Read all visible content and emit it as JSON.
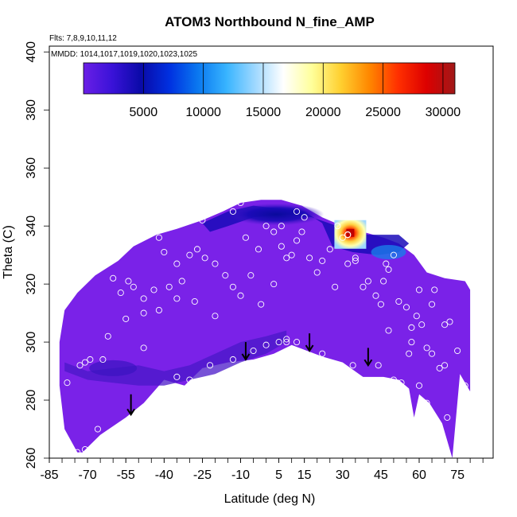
{
  "chart_data": {
    "type": "heatmap",
    "title": "ATOM3 Northbound N_fine_AMP",
    "subtitle_flights": "Flts: 7,8,9,10,11,12",
    "subtitle_dates": "MMDD: 1014,1017,1019,1020,1023,1025",
    "xlabel": "Latitude (deg N)",
    "ylabel": "Theta (C)",
    "xlim": [
      -85,
      89
    ],
    "ylim": [
      260,
      402
    ],
    "x_ticks": [
      -85,
      -70,
      -55,
      -40,
      -25,
      -10,
      5,
      15,
      30,
      45,
      60,
      75
    ],
    "y_ticks": [
      260,
      280,
      300,
      320,
      340,
      360,
      380,
      400
    ],
    "colorbar": {
      "range": [
        0,
        31000
      ],
      "ticks": [
        5000,
        10000,
        15000,
        20000,
        25000,
        30000
      ],
      "colors": [
        "#6a1fe6",
        "#3a12d8",
        "#0a0aa8",
        "#0030e0",
        "#0a78f0",
        "#38b4ff",
        "#9fd8ff",
        "#ffffff",
        "#ffff9a",
        "#ffd030",
        "#ff8800",
        "#ff3000",
        "#dd0000",
        "#a01818"
      ]
    },
    "field_colors": {
      "background": "#7a22e8",
      "dark_band": "#4a18c8",
      "deep_blue": "#1a0ab8",
      "navy": "#0a0a9c",
      "hotspot_core": "#c00000",
      "hotspot_ring": "#ffd040"
    },
    "envelope": {
      "top": [
        [
          -79,
          311
        ],
        [
          -74,
          317
        ],
        [
          -67,
          323
        ],
        [
          -58,
          328
        ],
        [
          -52,
          333
        ],
        [
          -43,
          337
        ],
        [
          -35,
          339
        ],
        [
          -25,
          342
        ],
        [
          -17,
          345
        ],
        [
          -10,
          348
        ],
        [
          -2,
          349
        ],
        [
          6,
          349
        ],
        [
          14,
          347
        ],
        [
          22,
          343
        ],
        [
          30,
          340
        ],
        [
          38,
          338
        ],
        [
          46,
          336
        ],
        [
          52,
          334
        ],
        [
          58,
          330
        ],
        [
          63,
          324
        ],
        [
          70,
          322
        ],
        [
          78,
          321
        ],
        [
          80,
          318
        ]
      ],
      "bottom": [
        [
          80,
          283
        ],
        [
          76,
          289
        ],
        [
          73,
          260
        ],
        [
          69,
          272
        ],
        [
          64,
          279
        ],
        [
          60,
          282
        ],
        [
          58,
          274
        ],
        [
          56,
          284
        ],
        [
          52,
          287
        ],
        [
          46,
          288
        ],
        [
          38,
          288
        ],
        [
          30,
          293
        ],
        [
          22,
          295
        ],
        [
          16,
          297
        ],
        [
          10,
          299
        ],
        [
          3,
          296
        ],
        [
          -5,
          294
        ],
        [
          -15,
          293
        ],
        [
          -25,
          291
        ],
        [
          -32,
          285
        ],
        [
          -40,
          287
        ],
        [
          -48,
          279
        ],
        [
          -55,
          274
        ],
        [
          -65,
          268
        ],
        [
          -72,
          262
        ],
        [
          -74,
          262
        ],
        [
          -79,
          270
        ],
        [
          -81,
          285
        ],
        [
          -81,
          300
        ]
      ]
    },
    "low_region": [
      [
        -79,
        293
      ],
      [
        -70,
        290
      ],
      [
        -60,
        291
      ],
      [
        -50,
        292
      ],
      [
        -40,
        290
      ],
      [
        -30,
        292
      ],
      [
        -20,
        296
      ],
      [
        -10,
        300
      ],
      [
        0,
        302
      ],
      [
        8,
        304
      ],
      [
        8,
        300
      ],
      [
        0,
        296
      ],
      [
        -10,
        293
      ],
      [
        -20,
        289
      ],
      [
        -30,
        287
      ],
      [
        -40,
        285
      ],
      [
        -50,
        285
      ],
      [
        -60,
        286
      ],
      [
        -70,
        287
      ],
      [
        -79,
        290
      ]
    ],
    "blue_band": [
      [
        -25,
        341
      ],
      [
        -15,
        345
      ],
      [
        -5,
        347
      ],
      [
        5,
        346
      ],
      [
        15,
        345
      ],
      [
        22,
        341
      ],
      [
        26,
        333
      ],
      [
        34,
        331
      ],
      [
        44,
        330
      ],
      [
        52,
        331
      ],
      [
        56,
        334
      ],
      [
        52,
        337
      ],
      [
        40,
        337
      ],
      [
        28,
        340
      ],
      [
        18,
        343
      ],
      [
        8,
        344
      ],
      [
        -5,
        343
      ],
      [
        -15,
        340
      ],
      [
        -22,
        338
      ]
    ],
    "hotspot": {
      "x": 33,
      "y": 336,
      "peak": 30500
    },
    "arrows": [
      {
        "x": -53,
        "y_top": 282,
        "y_bottom": 275
      },
      {
        "x": -8,
        "y_top": 300,
        "y_bottom": 294
      },
      {
        "x": 17,
        "y_top": 303,
        "y_bottom": 297
      },
      {
        "x": 40,
        "y_top": 298,
        "y_bottom": 292
      }
    ],
    "samples": [
      [
        -74,
        262
      ],
      [
        -71,
        263
      ],
      [
        -66,
        270
      ],
      [
        -78,
        286
      ],
      [
        -73,
        292
      ],
      [
        -71,
        293
      ],
      [
        -69,
        294
      ],
      [
        -64,
        294
      ],
      [
        -62,
        302
      ],
      [
        -57,
        317
      ],
      [
        -54,
        321
      ],
      [
        -52,
        319
      ],
      [
        -48,
        315
      ],
      [
        -44,
        318
      ],
      [
        -42,
        311
      ],
      [
        -38,
        319
      ],
      [
        -35,
        315
      ],
      [
        -33,
        321
      ],
      [
        -30,
        330
      ],
      [
        -27,
        332
      ],
      [
        -24,
        329
      ],
      [
        -20,
        327
      ],
      [
        -16,
        323
      ],
      [
        -13,
        319
      ],
      [
        -10,
        316
      ],
      [
        -6,
        323
      ],
      [
        -3,
        332
      ],
      [
        0,
        340
      ],
      [
        3,
        338
      ],
      [
        6,
        333
      ],
      [
        8,
        329
      ],
      [
        10,
        330
      ],
      [
        12,
        335
      ],
      [
        14,
        338
      ],
      [
        15,
        343
      ],
      [
        17,
        329
      ],
      [
        20,
        324
      ],
      [
        22,
        328
      ],
      [
        25,
        332
      ],
      [
        28,
        340
      ],
      [
        30,
        336
      ],
      [
        32,
        327
      ],
      [
        35,
        328
      ],
      [
        38,
        319
      ],
      [
        40,
        321
      ],
      [
        43,
        316
      ],
      [
        45,
        313
      ],
      [
        48,
        325
      ],
      [
        50,
        330
      ],
      [
        52,
        314
      ],
      [
        55,
        312
      ],
      [
        57,
        305
      ],
      [
        59,
        309
      ],
      [
        61,
        306
      ],
      [
        63,
        298
      ],
      [
        65,
        296
      ],
      [
        68,
        291
      ],
      [
        70,
        292
      ],
      [
        72,
        307
      ],
      [
        75,
        297
      ],
      [
        78,
        285
      ],
      [
        -48,
        298
      ],
      [
        -35,
        288
      ],
      [
        -30,
        287
      ],
      [
        -22,
        292
      ],
      [
        -13,
        294
      ],
      [
        -5,
        297
      ],
      [
        0,
        299
      ],
      [
        5,
        300
      ],
      [
        8,
        301
      ],
      [
        8,
        300
      ],
      [
        12,
        300
      ],
      [
        22,
        296
      ],
      [
        34,
        292
      ],
      [
        44,
        292
      ],
      [
        50,
        287
      ],
      [
        53,
        286
      ],
      [
        56,
        296
      ],
      [
        60,
        285
      ],
      [
        63,
        279
      ],
      [
        71,
        274
      ],
      [
        -40,
        331
      ],
      [
        -25,
        342
      ],
      [
        -13,
        345
      ],
      [
        -8,
        336
      ],
      [
        6,
        340
      ],
      [
        -60,
        322
      ],
      [
        -55,
        308
      ],
      [
        -48,
        310
      ],
      [
        -20,
        309
      ],
      [
        27,
        319
      ],
      [
        35,
        329
      ],
      [
        47,
        327
      ],
      [
        60,
        318
      ],
      [
        66,
        318
      ],
      [
        70,
        306
      ],
      [
        -2,
        313
      ],
      [
        3,
        320
      ],
      [
        -28,
        314
      ],
      [
        65,
        313
      ],
      [
        57,
        300
      ],
      [
        48,
        304
      ],
      [
        46,
        321
      ],
      [
        -42,
        336
      ],
      [
        -18,
        346
      ],
      [
        -10,
        348
      ],
      [
        12,
        345
      ],
      [
        -35,
        327
      ]
    ],
    "highlight_sample": [
      32,
      337
    ]
  }
}
